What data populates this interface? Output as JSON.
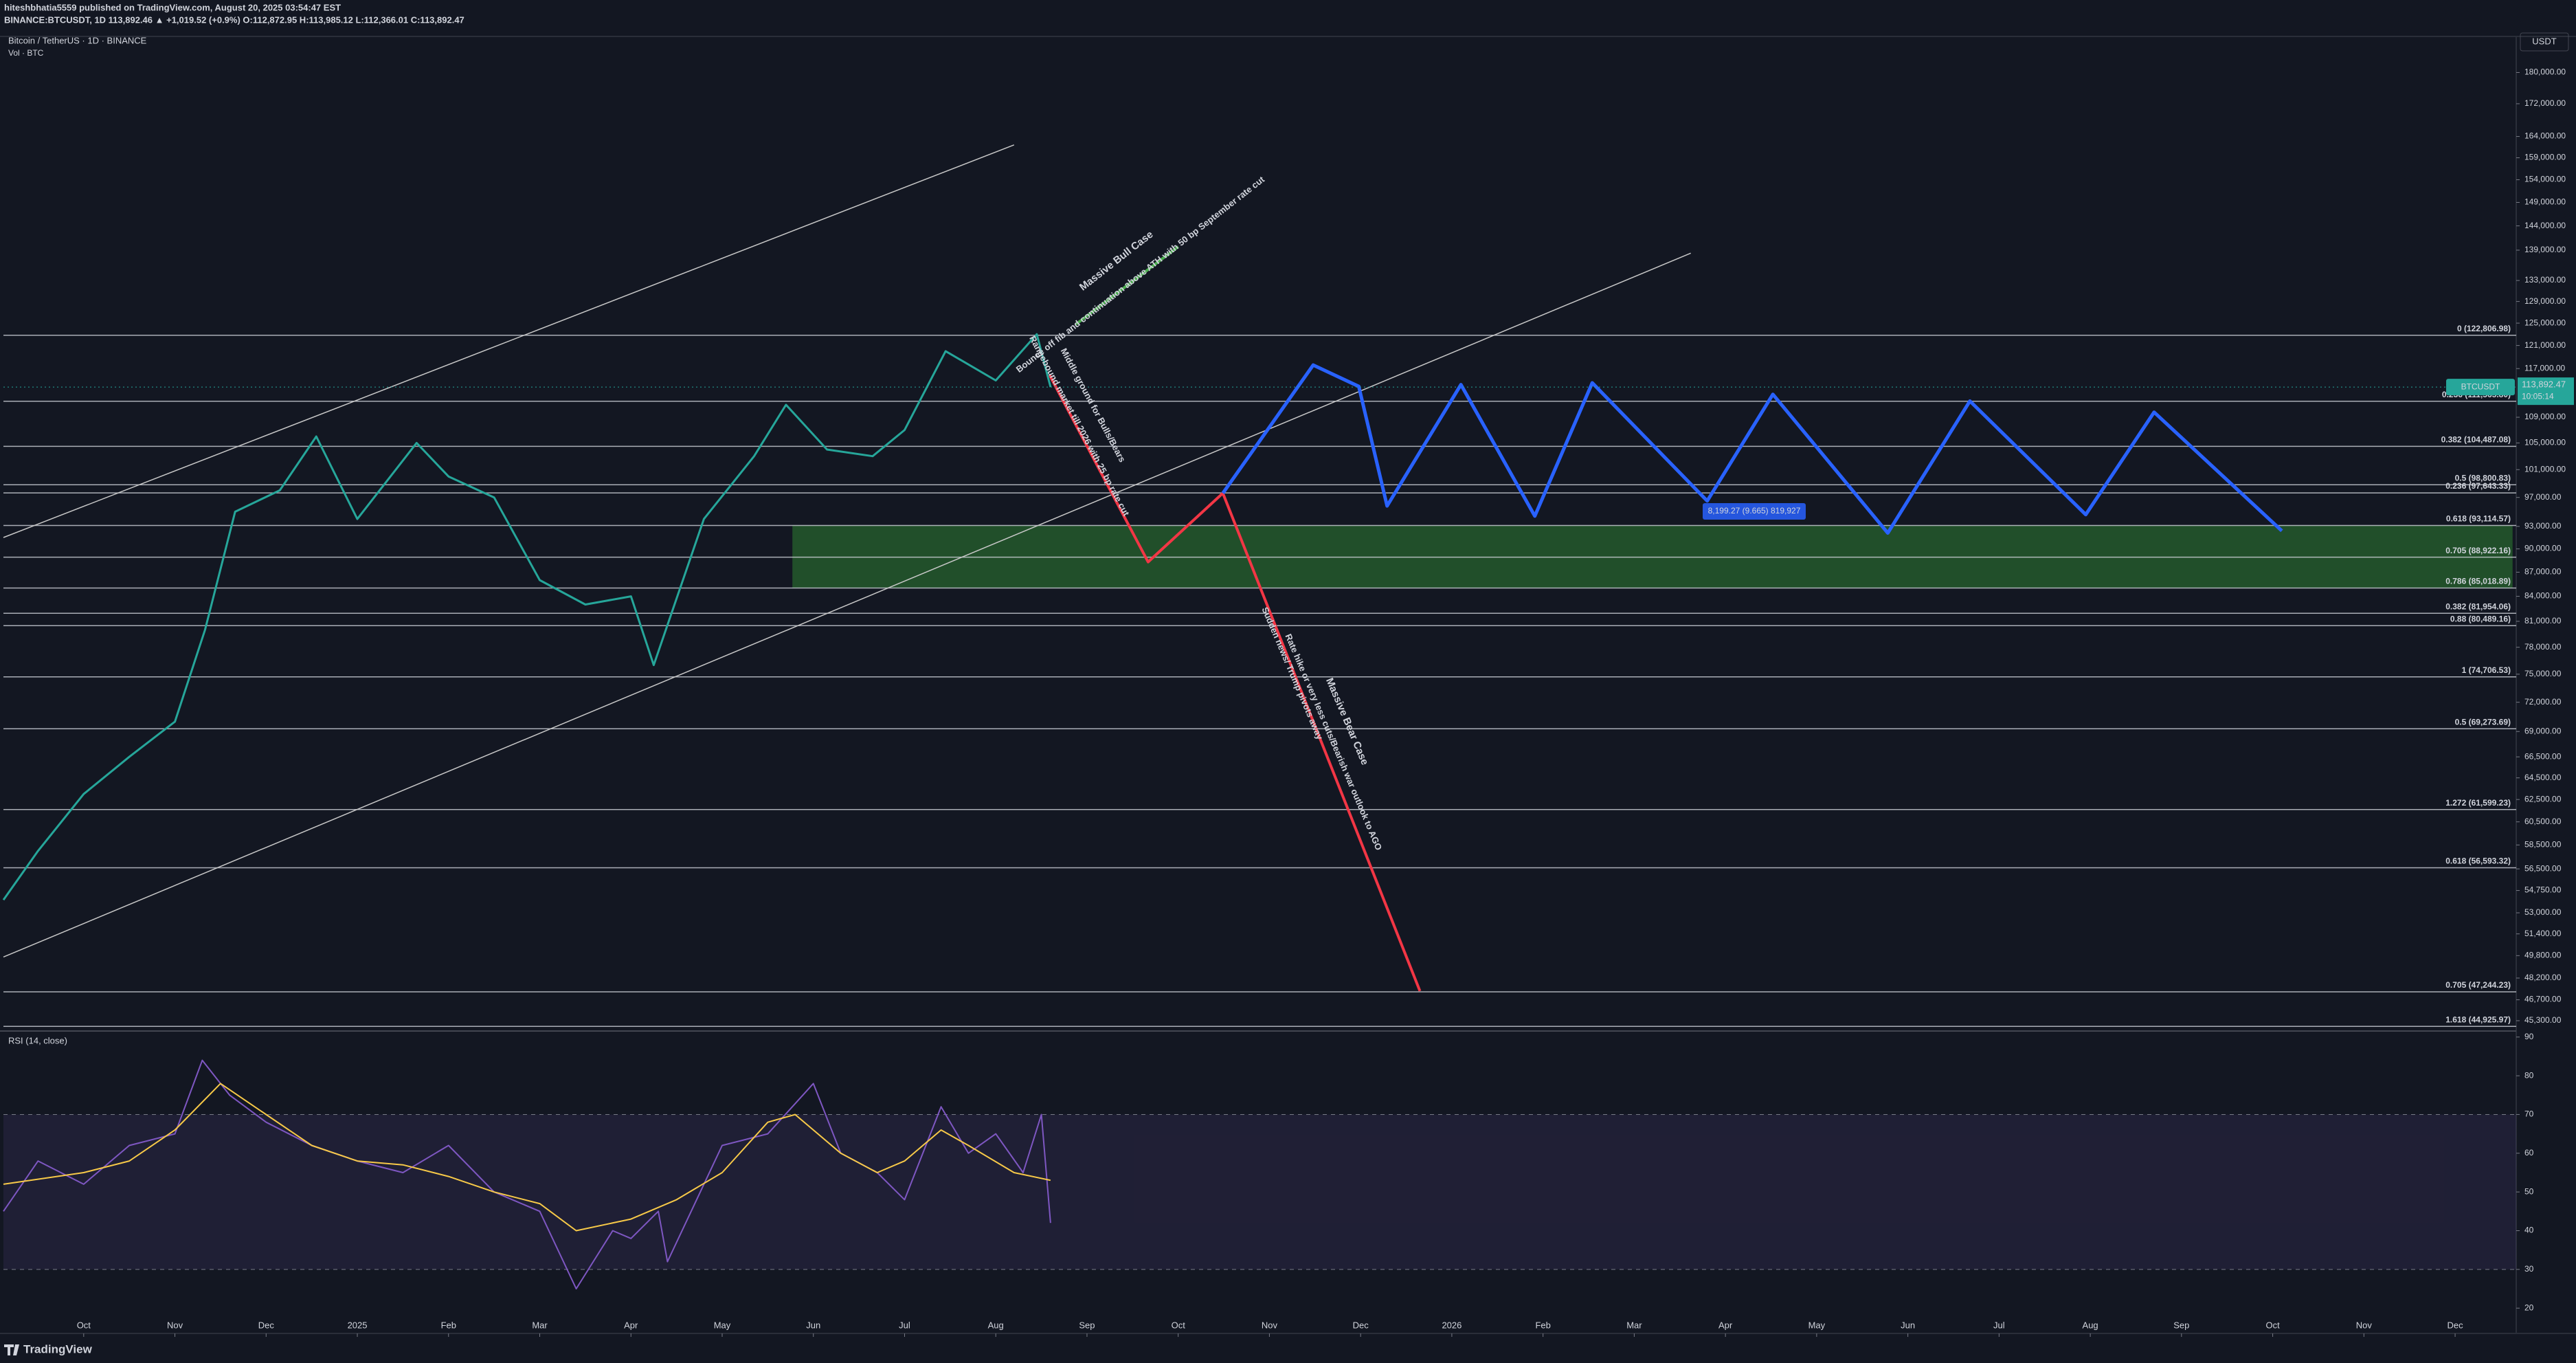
{
  "header": {
    "publisher": "hiteshbhatia5559 published on TradingView.com, August 20, 2025 03:54:47 EST",
    "symbol_line": "BINANCE:BTCUSDT, 1D 113,892.46 ▲ +1,019.52 (+0.9%) O:112,872.95 H:113,985.12 L:112,366.01 C:113,892.47"
  },
  "chart_data": {
    "type": "line",
    "title": "Bitcoin / TetherUS · 1D · BINANCE",
    "subtitle": "Vol · BTC",
    "currency": "USDT",
    "log_scale": true,
    "xlim": [
      -0.88,
      26.67
    ],
    "xticks": [
      {
        "value": 0,
        "label": "Oct"
      },
      {
        "value": 1,
        "label": "Nov"
      },
      {
        "value": 2,
        "label": "Dec"
      },
      {
        "value": 3,
        "label": "2025"
      },
      {
        "value": 4,
        "label": "Feb"
      },
      {
        "value": 5,
        "label": "Mar"
      },
      {
        "value": 6,
        "label": "Apr"
      },
      {
        "value": 7,
        "label": "May"
      },
      {
        "value": 8,
        "label": "Jun"
      },
      {
        "value": 9,
        "label": "Jul"
      },
      {
        "value": 10,
        "label": "Aug"
      },
      {
        "value": 11,
        "label": "Sep"
      },
      {
        "value": 12,
        "label": "Oct"
      },
      {
        "value": 13,
        "label": "Nov"
      },
      {
        "value": 14,
        "label": "Dec"
      },
      {
        "value": 15,
        "label": "2026"
      },
      {
        "value": 16,
        "label": "Feb"
      },
      {
        "value": 17,
        "label": "Mar"
      },
      {
        "value": 18,
        "label": "Apr"
      },
      {
        "value": 19,
        "label": "May"
      },
      {
        "value": 20,
        "label": "Jun"
      },
      {
        "value": 21,
        "label": "Jul"
      },
      {
        "value": 22,
        "label": "Aug"
      },
      {
        "value": 23,
        "label": "Sep"
      },
      {
        "value": 24,
        "label": "Oct"
      },
      {
        "value": 25,
        "label": "Nov"
      },
      {
        "value": 26,
        "label": "Dec"
      }
    ],
    "ylim": [
      44760,
      189700
    ],
    "yticks": [
      {
        "value": 180000,
        "label": "180,000.00"
      },
      {
        "value": 172000,
        "label": "172,000.00"
      },
      {
        "value": 164000,
        "label": "164,000.00"
      },
      {
        "value": 159000,
        "label": "159,000.00"
      },
      {
        "value": 154000,
        "label": "154,000.00"
      },
      {
        "value": 149000,
        "label": "149,000.00"
      },
      {
        "value": 144000,
        "label": "144,000.00"
      },
      {
        "value": 139000,
        "label": "139,000.00"
      },
      {
        "value": 133000,
        "label": "133,000.00"
      },
      {
        "value": 129000,
        "label": "129,000.00"
      },
      {
        "value": 125000,
        "label": "125,000.00"
      },
      {
        "value": 121000,
        "label": "121,000.00"
      },
      {
        "value": 117000,
        "label": "117,000.00"
      },
      {
        "value": 109000,
        "label": "109,000.00"
      },
      {
        "value": 105000,
        "label": "105,000.00"
      },
      {
        "value": 101000,
        "label": "101,000.00"
      },
      {
        "value": 97000,
        "label": "97,000.00"
      },
      {
        "value": 93000,
        "label": "93,000.00"
      },
      {
        "value": 90000,
        "label": "90,000.00"
      },
      {
        "value": 87000,
        "label": "87,000.00"
      },
      {
        "value": 84000,
        "label": "84,000.00"
      },
      {
        "value": 81000,
        "label": "81,000.00"
      },
      {
        "value": 78000,
        "label": "78,000.00"
      },
      {
        "value": 75000,
        "label": "75,000.00"
      },
      {
        "value": 72000,
        "label": "72,000.00"
      },
      {
        "value": 69000,
        "label": "69,000.00"
      },
      {
        "value": 66500,
        "label": "66,500.00"
      },
      {
        "value": 64500,
        "label": "64,500.00"
      },
      {
        "value": 62500,
        "label": "62,500.00"
      },
      {
        "value": 60500,
        "label": "60,500.00"
      },
      {
        "value": 58500,
        "label": "58,500.00"
      },
      {
        "value": 56500,
        "label": "56,500.00"
      },
      {
        "value": 54750,
        "label": "54,750.00"
      },
      {
        "value": 53000,
        "label": "53,000.00"
      },
      {
        "value": 51400,
        "label": "51,400.00"
      },
      {
        "value": 49800,
        "label": "49,800.00"
      },
      {
        "value": 48200,
        "label": "48,200.00"
      },
      {
        "value": 46700,
        "label": "46,700.00"
      },
      {
        "value": 45300,
        "label": "45,300.00"
      }
    ],
    "series": [
      {
        "name": "BTCUSDT",
        "color": "#26a69a",
        "x": [
          -0.88,
          -0.5,
          0,
          0.5,
          1,
          1.33,
          1.66,
          2.15,
          2.55,
          3,
          3.65,
          4,
          4.5,
          5,
          5.5,
          6,
          6.25,
          6.8,
          7.35,
          7.7,
          8.15,
          8.65,
          9,
          9.45,
          10,
          10.45,
          10.6
        ],
        "values": [
          54000,
          58000,
          63000,
          66500,
          70000,
          80000,
          95000,
          98000,
          106000,
          94000,
          105000,
          100000,
          97000,
          86000,
          83000,
          84000,
          76000,
          94000,
          103000,
          111000,
          104000,
          103000,
          107000,
          120000,
          115000,
          123000,
          113892.47
        ]
      }
    ],
    "last_price": {
      "value": 113892.47,
      "label": "113,892.47"
    },
    "countdown": "10:05:14",
    "fib_levels": [
      {
        "value": 122806.98,
        "label": "0 (122,806.98)"
      },
      {
        "value": 111565.8,
        "label": "0.236 (111,565.80)"
      },
      {
        "value": 104487.08,
        "label": "0.382 (104,487.08)"
      },
      {
        "value": 98800.83,
        "label": "0.5 (98,800.83)"
      },
      {
        "value": 97643.33,
        "label": "0.236 (97,643.33)"
      },
      {
        "value": 93114.57,
        "label": "0.618 (93,114.57)"
      },
      {
        "value": 88922.16,
        "label": "0.705 (88,922.16)"
      },
      {
        "value": 85018.89,
        "label": "0.786 (85,018.89)"
      },
      {
        "value": 81954.06,
        "label": "0.382 (81,954.06)"
      },
      {
        "value": 80489.16,
        "label": "0.88 (80,489.16)"
      },
      {
        "value": 74706.53,
        "label": "1 (74,706.53)"
      },
      {
        "value": 69273.69,
        "label": "0.5 (69,273.69)"
      },
      {
        "value": 61599.23,
        "label": "1.272 (61,599.23)"
      },
      {
        "value": 56593.32,
        "label": "0.618 (56,593.32)"
      },
      {
        "value": 47244.23,
        "label": "0.705 (47,244.23)"
      },
      {
        "value": 44925.97,
        "label": "1.618 (44,925.97)"
      }
    ],
    "zone": {
      "color": "#2e7d32",
      "x": [
        7.77,
        26.63
      ],
      "values": [
        85018.89,
        93114.57
      ]
    },
    "drawings": [
      {
        "color": "#c8c8c8",
        "x": [
          -0.88,
          10.2
        ],
        "values": [
          91500,
          162000
        ]
      },
      {
        "color": "#c8c8c8",
        "x": [
          -0.88,
          17.62
        ],
        "values": [
          49700,
          138400
        ]
      },
      {
        "color": "#f23645",
        "x": [
          10.59,
          11.67,
          12.49,
          14.65
        ],
        "values": [
          115900,
          88300,
          97600,
          47300
        ]
      },
      {
        "color": "#4caf50",
        "x": [
          10.88,
          12.0
        ],
        "values": [
          124800,
          139700
        ]
      },
      {
        "color": "#2962ff",
        "x": [
          12.49,
          13.48,
          13.98,
          14.29,
          15.1,
          15.91,
          16.54,
          17.8,
          18.52,
          19.78,
          20.68,
          21.95,
          22.7,
          24.1
        ],
        "values": [
          97600,
          117600,
          114000,
          95800,
          114300,
          94400,
          114600,
          96500,
          112700,
          92100,
          111600,
          94600,
          109800,
          92400
        ]
      }
    ],
    "measure_label": "8,199.27 (9.665) 819,927",
    "annotations": [
      "Massive Bull Case",
      "Bounce off fib and continuation above ATH with 50 bp September rate cut",
      "Middle ground for Bulls/Bears",
      "Rangebound market till 2026 with 25 bp rate cut",
      "Sudden news/ Trump pivots away",
      "Massive Bear Case",
      "Rate hike or very less cuts/Bearish war outlook to AGO"
    ],
    "rsi": {
      "title": "RSI (14, close)",
      "ylim": [
        14,
        91.2
      ],
      "yticks": [
        90,
        80,
        70,
        60,
        50,
        40,
        30,
        20
      ],
      "band": [
        30,
        70
      ],
      "band_color": "#7e57c2",
      "series": [
        {
          "color": "#7e57c2",
          "x": [
            -0.88,
            -0.5,
            0,
            0.5,
            1,
            1.3,
            1.6,
            2,
            2.5,
            3,
            3.5,
            4,
            4.5,
            5,
            5.4,
            5.8,
            6,
            6.3,
            6.4,
            7,
            7.5,
            8,
            8.3,
            8.7,
            9,
            9.4,
            9.7,
            10,
            10.3,
            10.5,
            10.6
          ],
          "values": [
            45,
            58,
            52,
            62,
            65,
            84,
            75,
            68,
            62,
            58,
            55,
            62,
            50,
            45,
            25,
            40,
            38,
            45,
            32,
            62,
            65,
            78,
            60,
            55,
            48,
            72,
            60,
            65,
            55,
            70,
            42
          ]
        },
        {
          "color": "#f7c948",
          "x": [
            -0.88,
            0,
            0.5,
            1,
            1.5,
            2,
            2.5,
            3,
            3.5,
            4,
            4.5,
            5,
            5.4,
            6,
            6.5,
            7,
            7.5,
            7.8,
            8.3,
            8.7,
            9,
            9.4,
            9.7,
            10.2,
            10.6
          ],
          "values": [
            52,
            55,
            58,
            66,
            78,
            70,
            62,
            58,
            57,
            54,
            50,
            47,
            40,
            43,
            48,
            55,
            68,
            70,
            60,
            55,
            58,
            66,
            62,
            55,
            53
          ]
        }
      ]
    }
  },
  "footer": "TradingView"
}
